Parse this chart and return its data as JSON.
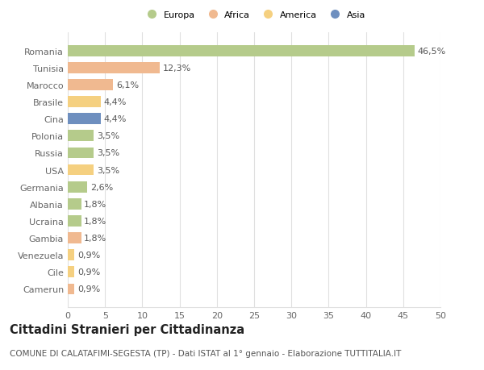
{
  "countries": [
    "Romania",
    "Tunisia",
    "Marocco",
    "Brasile",
    "Cina",
    "Polonia",
    "Russia",
    "USA",
    "Germania",
    "Albania",
    "Ucraina",
    "Gambia",
    "Venezuela",
    "Cile",
    "Camerun"
  ],
  "values": [
    46.5,
    12.3,
    6.1,
    4.4,
    4.4,
    3.5,
    3.5,
    3.5,
    2.6,
    1.8,
    1.8,
    1.8,
    0.9,
    0.9,
    0.9
  ],
  "labels": [
    "46,5%",
    "12,3%",
    "6,1%",
    "4,4%",
    "4,4%",
    "3,5%",
    "3,5%",
    "3,5%",
    "2,6%",
    "1,8%",
    "1,8%",
    "1,8%",
    "0,9%",
    "0,9%",
    "0,9%"
  ],
  "colors": [
    "#b5cb8b",
    "#f0b990",
    "#f0b990",
    "#f5d080",
    "#6e8fbf",
    "#b5cb8b",
    "#b5cb8b",
    "#f5d080",
    "#b5cb8b",
    "#b5cb8b",
    "#b5cb8b",
    "#f0b990",
    "#f5d080",
    "#f5d080",
    "#f0b990"
  ],
  "legend_labels": [
    "Europa",
    "Africa",
    "America",
    "Asia"
  ],
  "legend_colors": [
    "#b5cb8b",
    "#f0b990",
    "#f5d080",
    "#6e8fbf"
  ],
  "title": "Cittadini Stranieri per Cittadinanza",
  "subtitle": "COMUNE DI CALATAFIMI-SEGESTA (TP) - Dati ISTAT al 1° gennaio - Elaborazione TUTTITALIA.IT",
  "xlim": [
    0,
    50
  ],
  "xticks": [
    0,
    5,
    10,
    15,
    20,
    25,
    30,
    35,
    40,
    45,
    50
  ],
  "background_color": "#ffffff",
  "plot_bg_color": "#ffffff",
  "grid_color": "#e0e0e0",
  "bar_height": 0.65,
  "label_fontsize": 8,
  "tick_fontsize": 8,
  "title_fontsize": 10.5,
  "subtitle_fontsize": 7.5
}
